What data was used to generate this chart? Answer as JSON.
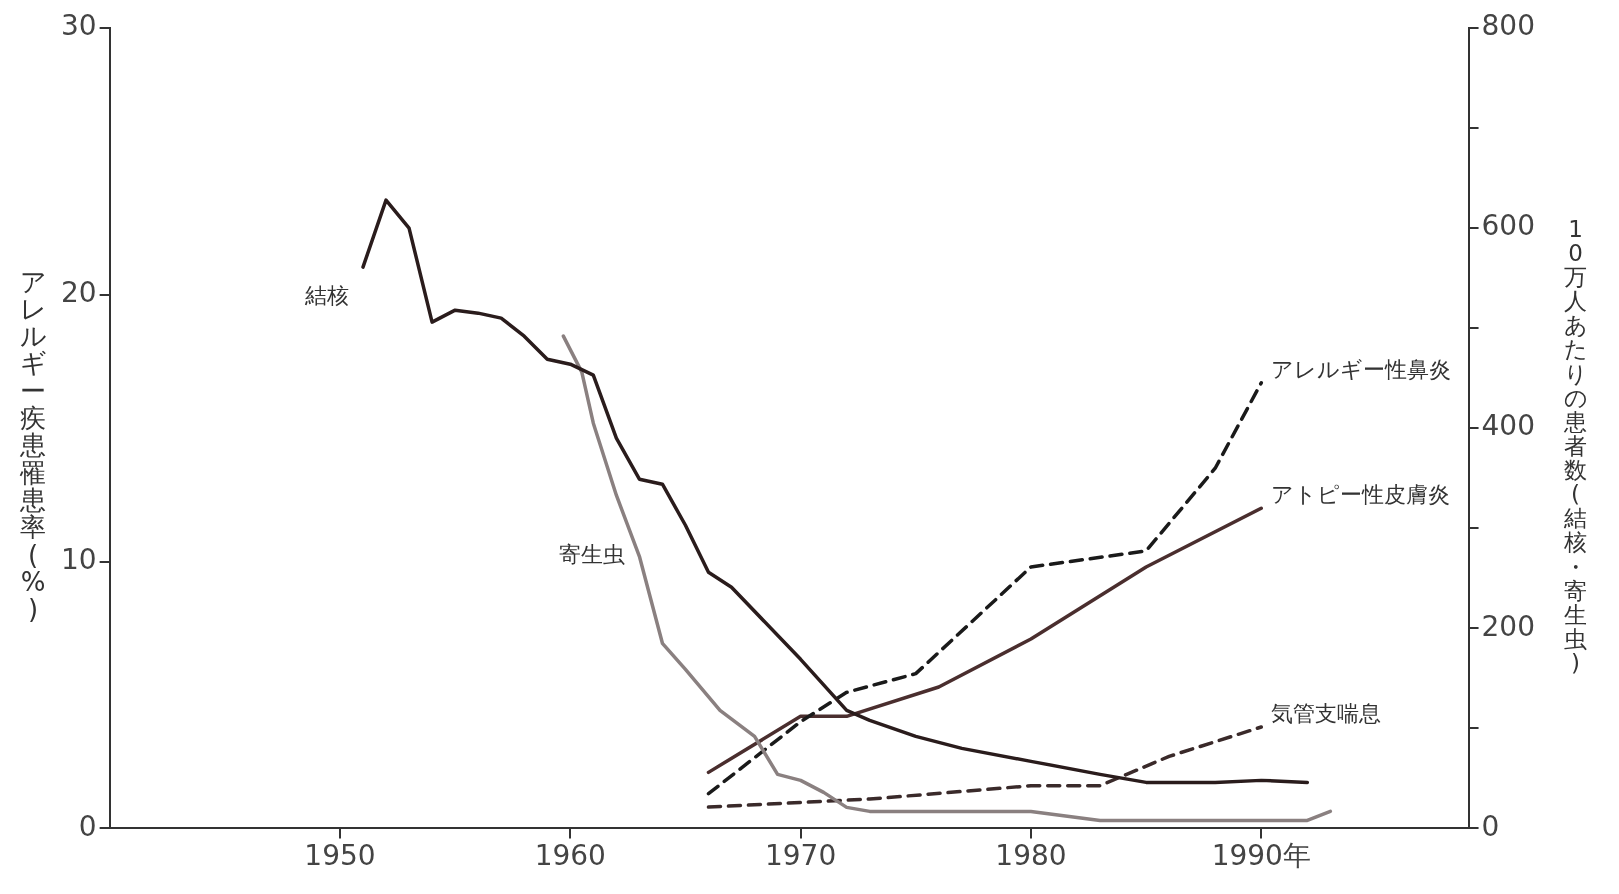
{
  "chart_data": {
    "type": "line",
    "ylabel": "アレルギー疾患罹患率(%)",
    "y2label": "10万人あたりの患者数(結核・寄生虫)",
    "xlim": [
      1940,
      1999
    ],
    "xticks": [
      1950,
      1960,
      1970,
      1980,
      {
        "value": 1990,
        "label": "1990年"
      }
    ],
    "ylim": [
      0,
      30
    ],
    "yticks": [
      0,
      10,
      20,
      30
    ],
    "y2lim": [
      0,
      800
    ],
    "y2ticks": [
      0,
      {
        "value": 100,
        "label": null
      },
      200,
      {
        "value": 300,
        "label": null
      },
      400,
      {
        "value": 500,
        "label": null
      },
      600,
      {
        "value": 700,
        "label": null
      },
      800
    ],
    "grid": false,
    "legend": false,
    "marker": "none",
    "series": [
      {
        "name": "結核",
        "color": "#2a1c1c",
        "axis": "y2",
        "line_style": "solid",
        "x": [
          1951,
          1952,
          1953,
          1954,
          1955,
          1956,
          1957,
          1958,
          1959,
          1960,
          1961,
          1962,
          1963,
          1964,
          1965,
          1966,
          1967,
          1970,
          1972,
          1973,
          1975,
          1977,
          1980,
          1983,
          1985,
          1988,
          1990,
          1992
        ],
        "values": [
          561,
          628,
          600,
          506,
          518,
          515,
          510,
          492,
          469,
          464,
          453,
          390,
          349,
          344,
          303,
          256,
          241,
          169,
          118,
          108,
          92,
          80,
          67,
          54,
          46,
          46,
          48,
          46
        ]
      },
      {
        "name": "寄生虫",
        "color": "#8a8080",
        "axis": "y2",
        "line_style": "solid",
        "x": [
          1959.7,
          1960.5,
          1961,
          1962,
          1963,
          1964,
          1965,
          1966.5,
          1968,
          1969,
          1970,
          1971,
          1972,
          1973,
          1980,
          1983,
          1990,
          1992,
          1993
        ],
        "values": [
          492,
          456,
          405,
          333,
          272,
          185,
          159,
          118,
          92,
          54,
          48,
          36,
          21,
          17,
          17,
          8,
          8,
          8,
          17
        ]
      },
      {
        "name": "アレルギー性鼻炎",
        "color": "#1a1a1a",
        "line_style": "dashed",
        "x": [
          1966,
          1970,
          1972,
          1975,
          1980,
          1985,
          1988,
          1990
        ],
        "values": [
          1.3,
          4.0,
          5.1,
          5.8,
          9.8,
          10.4,
          13.5,
          16.7
        ]
      },
      {
        "name": "アトピー性皮膚炎",
        "color": "#4a2e2e",
        "line_style": "solid",
        "x": [
          1966,
          1970,
          1972,
          1976,
          1980,
          1985,
          1990
        ],
        "values": [
          2.1,
          4.2,
          4.2,
          5.3,
          7.1,
          9.8,
          12.0
        ]
      },
      {
        "name": "気管支喘息",
        "color": "#3a2a2a",
        "line_style": "dashed",
        "x": [
          1966,
          1973,
          1980,
          1983,
          1986,
          1990
        ],
        "values": [
          0.8,
          1.1,
          1.6,
          1.6,
          2.7,
          3.8
        ]
      }
    ]
  }
}
